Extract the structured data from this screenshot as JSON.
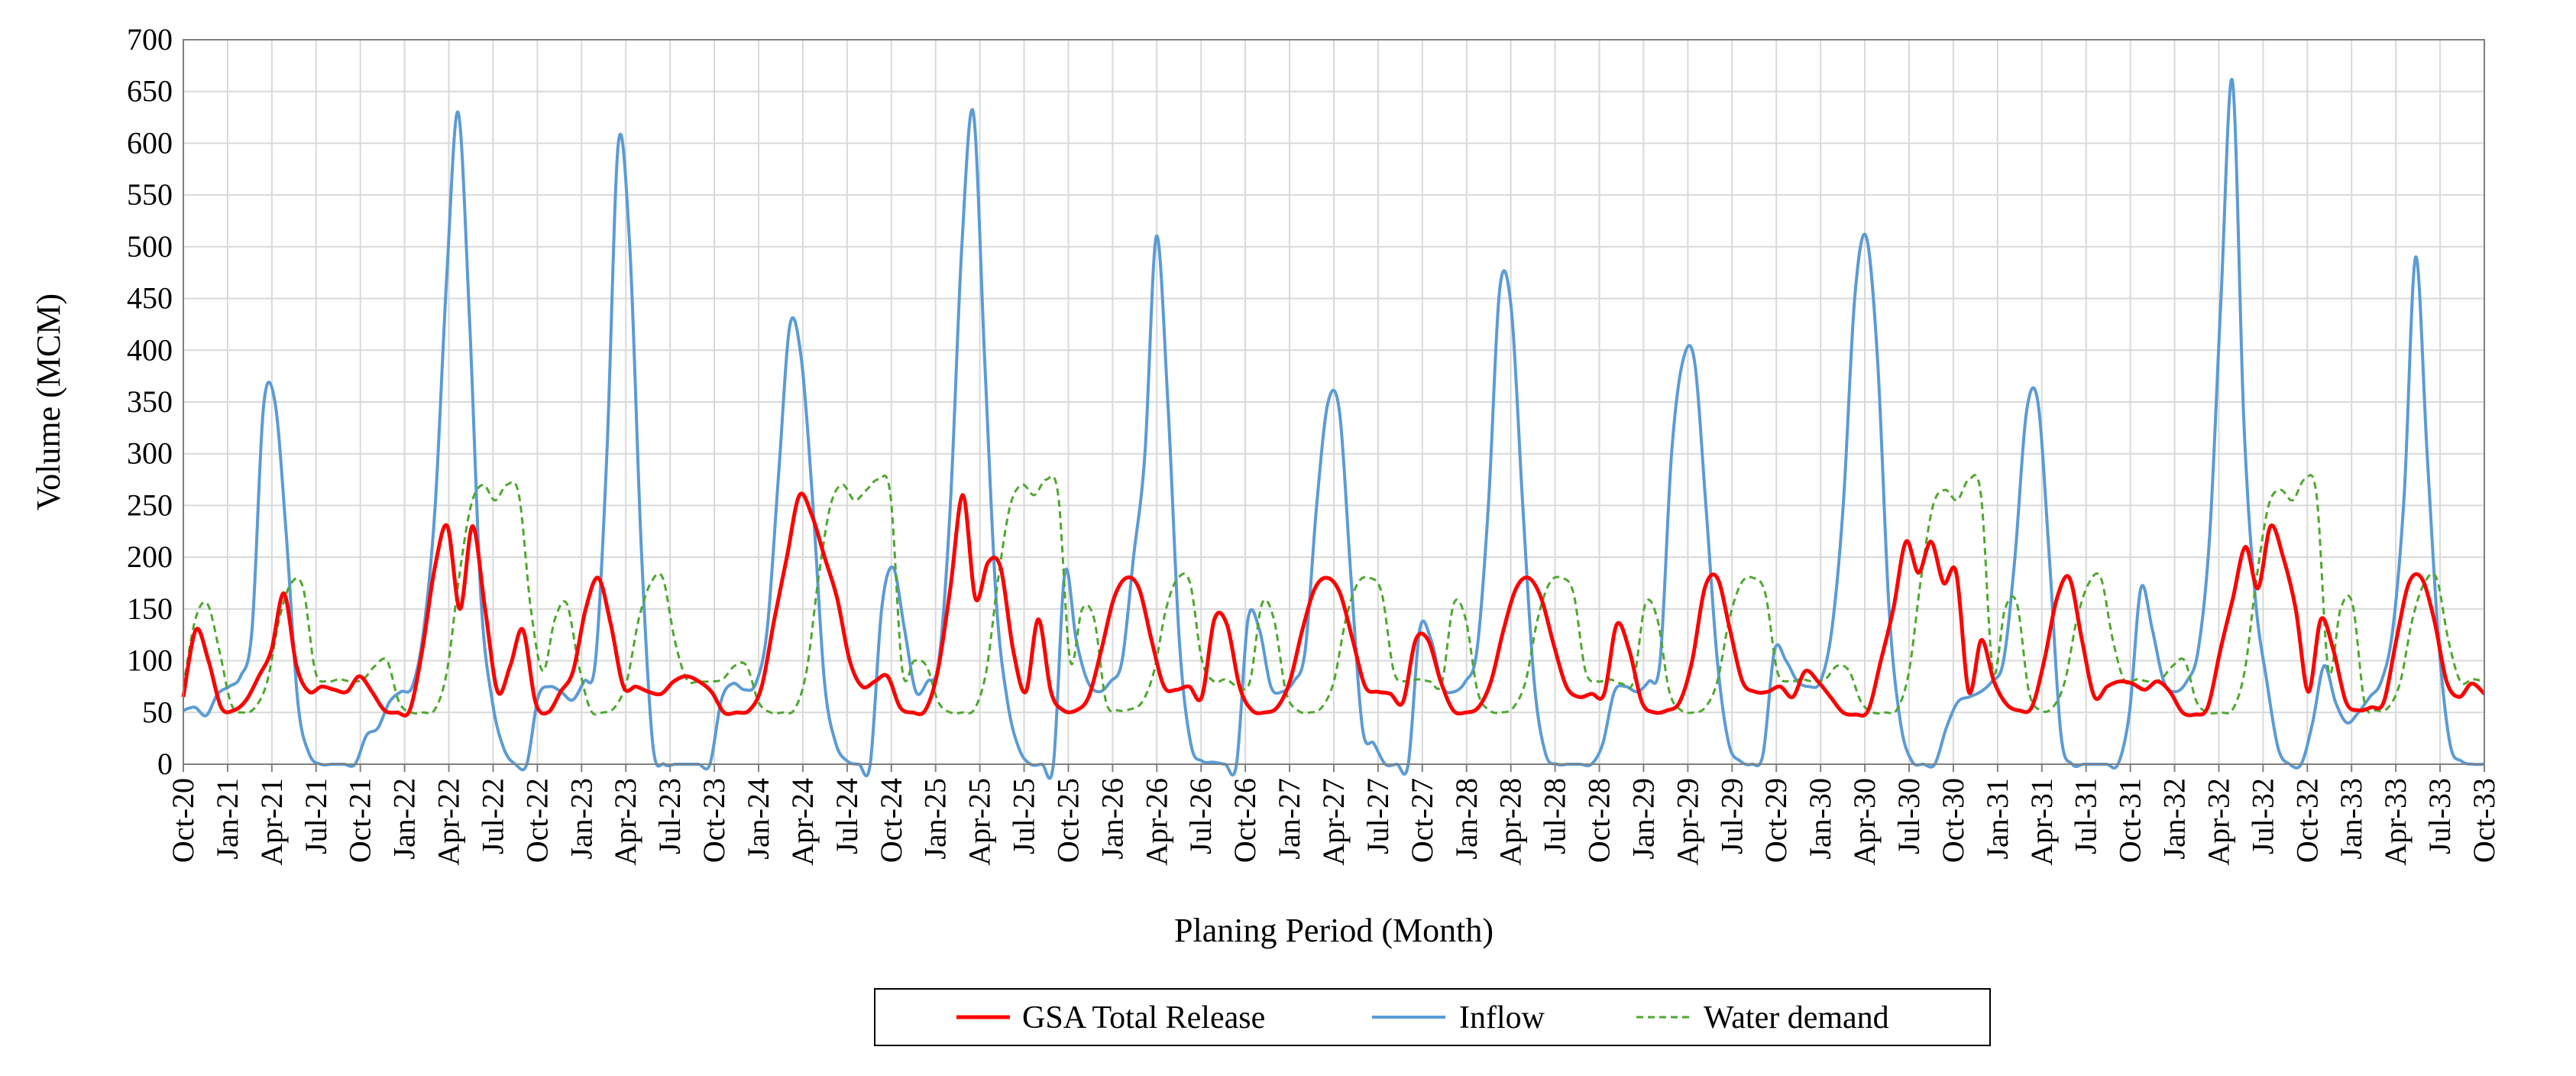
{
  "chart_data": {
    "type": "line",
    "title": "",
    "xlabel": "Planing Period (Month)",
    "ylabel": "Volume (MCM)",
    "ylim": [
      0,
      700
    ],
    "yticks": [
      0,
      50,
      100,
      150,
      200,
      250,
      300,
      350,
      400,
      450,
      500,
      550,
      600,
      650,
      700
    ],
    "grid": true,
    "legend_position": "bottom-center",
    "x_tick_labels": [
      "Oct-20",
      "Jan-21",
      "Apr-21",
      "Jul-21",
      "Oct-21",
      "Jan-22",
      "Apr-22",
      "Jul-22",
      "Oct-22",
      "Jan-23",
      "Apr-23",
      "Jul-23",
      "Oct-23",
      "Jan-24",
      "Apr-24",
      "Jul-24",
      "Oct-24",
      "Jan-25",
      "Apr-25",
      "Jul-25",
      "Oct-25",
      "Jan-26",
      "Apr-26",
      "Jul-26",
      "Oct-26",
      "Jan-27",
      "Apr-27",
      "Jul-27",
      "Oct-27",
      "Jan-28",
      "Apr-28",
      "Jul-28",
      "Oct-28",
      "Jan-29",
      "Apr-29",
      "Jul-29",
      "Oct-29",
      "Jan-30",
      "Apr-30",
      "Jul-30",
      "Oct-30",
      "Jan-31",
      "Apr-31",
      "Jul-31",
      "Oct-31",
      "Jan-32",
      "Apr-32",
      "Jul-32",
      "Oct-32",
      "Jan-33",
      "Apr-33",
      "Jul-33",
      "Oct-33"
    ],
    "series": [
      {
        "name": "GSA Total Release",
        "color": "#ff0000",
        "style": "solid",
        "values": [
          65,
          130,
          100,
          55,
          52,
          62,
          85,
          110,
          165,
          95,
          70,
          75,
          72,
          70,
          85,
          70,
          52,
          50,
          52,
          110,
          190,
          230,
          150,
          230,
          150,
          70,
          95,
          130,
          60,
          50,
          70,
          90,
          150,
          180,
          135,
          75,
          75,
          70,
          68,
          80,
          85,
          80,
          70,
          50,
          50,
          52,
          75,
          140,
          200,
          260,
          240,
          200,
          160,
          100,
          75,
          80,
          85,
          55,
          50,
          52,
          90,
          170,
          260,
          160,
          195,
          190,
          110,
          70,
          140,
          70,
          52,
          52,
          65,
          110,
          160,
          180,
          170,
          120,
          75,
          72,
          75,
          65,
          140,
          135,
          75,
          52,
          50,
          55,
          80,
          130,
          170,
          180,
          165,
          120,
          75,
          70,
          68,
          60,
          120,
          120,
          80,
          52,
          50,
          55,
          80,
          130,
          170,
          180,
          160,
          115,
          75,
          65,
          68,
          68,
          135,
          110,
          60,
          50,
          52,
          60,
          100,
          170,
          180,
          130,
          80,
          70,
          70,
          75,
          65,
          90,
          80,
          65,
          50,
          48,
          52,
          100,
          150,
          215,
          185,
          215,
          175,
          185,
          70,
          120,
          80,
          58,
          52,
          55,
          100,
          160,
          180,
          120,
          65,
          75,
          80,
          78,
          72,
          80,
          70,
          50,
          48,
          55,
          110,
          160,
          210,
          170,
          230,
          200,
          150,
          70,
          140,
          110,
          60,
          52,
          55,
          60,
          120,
          175,
          180,
          140,
          80,
          65,
          78,
          68
        ]
      },
      {
        "name": "Inflow",
        "color": "#5b9bd5",
        "style": "solid",
        "values": [
          52,
          55,
          47,
          68,
          75,
          85,
          130,
          345,
          350,
          220,
          60,
          10,
          0,
          0,
          0,
          0,
          28,
          35,
          60,
          70,
          75,
          130,
          250,
          470,
          630,
          430,
          160,
          60,
          15,
          0,
          0,
          65,
          75,
          70,
          62,
          80,
          100,
          300,
          600,
          500,
          210,
          20,
          0,
          0,
          0,
          0,
          0,
          62,
          78,
          72,
          78,
          130,
          280,
          425,
          390,
          250,
          80,
          20,
          3,
          0,
          0,
          150,
          190,
          130,
          70,
          80,
          100,
          250,
          500,
          630,
          390,
          160,
          60,
          15,
          0,
          0,
          0,
          185,
          120,
          80,
          70,
          80,
          100,
          200,
          300,
          510,
          350,
          120,
          20,
          3,
          2,
          0,
          0,
          140,
          130,
          75,
          70,
          80,
          110,
          250,
          350,
          340,
          180,
          35,
          20,
          0,
          0,
          0,
          130,
          120,
          75,
          70,
          80,
          110,
          250,
          460,
          440,
          250,
          80,
          10,
          0,
          0,
          0,
          0,
          20,
          70,
          75,
          70,
          80,
          100,
          300,
          390,
          390,
          250,
          100,
          20,
          3,
          0,
          10,
          110,
          100,
          80,
          75,
          80,
          130,
          250,
          450,
          510,
          390,
          150,
          40,
          3,
          0,
          0,
          35,
          60,
          65,
          70,
          80,
          100,
          200,
          340,
          350,
          200,
          30,
          0,
          0,
          0,
          0,
          0,
          50,
          170,
          130,
          80,
          70,
          80,
          110,
          220,
          450,
          660,
          330,
          160,
          80,
          15,
          0,
          0,
          40,
          95,
          60,
          40,
          50,
          65,
          80,
          130,
          260,
          490,
          300,
          120,
          20,
          3,
          0,
          0
        ]
      },
      {
        "name": "Water demand",
        "color": "#4ea72e",
        "style": "dashed",
        "values": [
          75,
          140,
          155,
          110,
          58,
          50,
          55,
          80,
          140,
          175,
          170,
          90,
          80,
          82,
          80,
          82,
          95,
          100,
          60,
          50,
          50,
          53,
          90,
          180,
          250,
          270,
          255,
          270,
          260,
          150,
          90,
          140,
          155,
          95,
          52,
          50,
          55,
          80,
          140,
          175,
          180,
          120,
          82,
          80,
          80,
          82,
          95,
          95,
          60,
          50,
          50,
          53,
          90,
          180,
          250,
          270,
          255,
          265,
          275,
          260,
          90,
          100,
          95,
          60,
          50,
          50,
          53,
          90,
          180,
          250,
          270,
          260,
          275,
          260,
          100,
          150,
          140,
          60,
          52,
          53,
          60,
          90,
          150,
          180,
          175,
          100,
          80,
          82,
          75,
          80,
          155,
          140,
          70,
          52,
          50,
          55,
          80,
          140,
          175,
          180,
          165,
          90,
          80,
          82,
          80,
          78,
          155,
          140,
          70,
          52,
          50,
          55,
          80,
          140,
          175,
          180,
          165,
          90,
          80,
          82,
          78,
          80,
          155,
          140,
          70,
          52,
          50,
          55,
          80,
          140,
          175,
          180,
          165,
          90,
          80,
          82,
          80,
          82,
          95,
          90,
          60,
          50,
          50,
          53,
          90,
          180,
          250,
          265,
          255,
          275,
          260,
          90,
          150,
          155,
          70,
          52,
          55,
          80,
          140,
          175,
          180,
          120,
          80,
          82,
          80,
          82,
          95,
          100,
          60,
          50,
          50,
          53,
          90,
          180,
          250,
          265,
          255,
          275,
          260,
          90,
          150,
          155,
          60,
          52,
          55,
          80,
          140,
          175,
          180,
          120,
          80,
          82,
          80
        ]
      }
    ]
  }
}
